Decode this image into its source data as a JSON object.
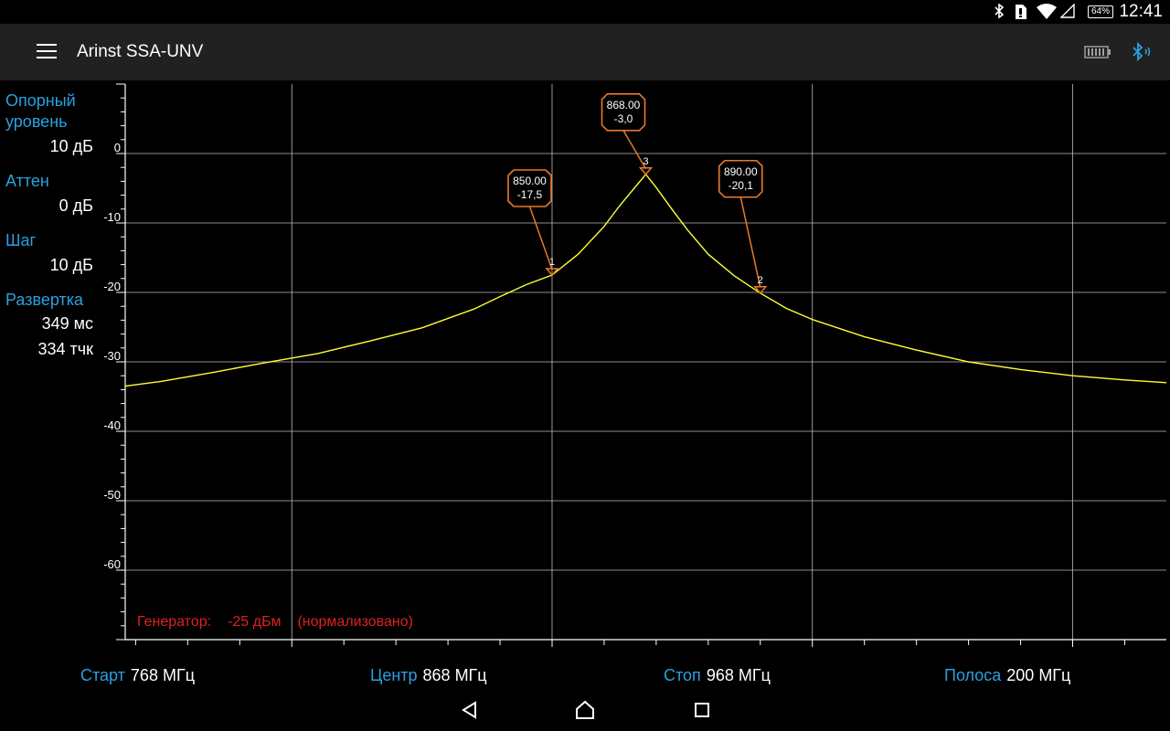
{
  "status_bar": {
    "time": "12:41",
    "battery_percent": "64%",
    "icons": [
      "bluetooth-icon",
      "sim-card-icon",
      "wifi-icon",
      "signal-icon",
      "battery-icon"
    ]
  },
  "app_bar": {
    "title": "Arinst SSA-UNV",
    "menu_icon": "hamburger-menu-icon",
    "right_icons": [
      "device-battery-icon",
      "bluetooth-connected-icon"
    ],
    "accent_color": "#2aa0e0"
  },
  "side_panel": {
    "ref_level": {
      "label_line1": "Опорный",
      "label_line2": "уровень",
      "value": "10  дБ"
    },
    "atten": {
      "label": "Аттен",
      "value": "0  дБ"
    },
    "step": {
      "label": "Шаг",
      "value": "10  дБ"
    },
    "sweep": {
      "label": "Развертка",
      "time": "349 мс",
      "points": "334 тчк"
    }
  },
  "generator": {
    "label": "Генератор:",
    "level": "-25 дБм",
    "note": "(нормализовано)",
    "color": "#e02020"
  },
  "bottom_info": {
    "start": {
      "label": "Старт",
      "value": "768 МГц"
    },
    "center": {
      "label": "Центр",
      "value": "868 МГц"
    },
    "stop": {
      "label": "Стоп",
      "value": "968 МГц"
    },
    "span": {
      "label": "Полоса",
      "value": "200 МГц"
    }
  },
  "nav_bar": [
    "back-icon",
    "home-icon",
    "recents-icon"
  ],
  "chart_data": {
    "type": "line",
    "title": "",
    "xlabel": "",
    "ylabel": "",
    "xlim": [
      768,
      968
    ],
    "ylim": [
      -70,
      10
    ],
    "x_ticks": [
      800,
      850,
      900,
      950
    ],
    "y_ticks": [
      0,
      -10,
      -20,
      -30,
      -40,
      -50,
      -60
    ],
    "grid": true,
    "trace_color": "#ffff33",
    "marker_color": "#e87a2a",
    "series": [
      {
        "x": [
          768,
          775,
          785,
          795,
          805,
          815,
          825,
          835,
          840,
          845,
          850,
          855,
          860,
          863,
          866,
          868,
          870,
          873,
          876,
          880,
          885,
          890,
          895,
          900,
          910,
          920,
          930,
          940,
          950,
          960,
          968
        ],
        "y": [
          -33.5,
          -32.8,
          -31.5,
          -30.1,
          -28.8,
          -27.0,
          -25.1,
          -22.4,
          -20.6,
          -18.9,
          -17.5,
          -14.5,
          -10.5,
          -7.5,
          -4.8,
          -3.0,
          -4.9,
          -8.0,
          -11.0,
          -14.5,
          -17.6,
          -20.1,
          -22.3,
          -23.9,
          -26.4,
          -28.3,
          -30.0,
          -31.1,
          -32.0,
          -32.6,
          -33.0
        ]
      }
    ],
    "markers": [
      {
        "id": "1",
        "freq": "850.00",
        "level": "-17,5",
        "x": 850,
        "y": -17.5
      },
      {
        "id": "2",
        "freq": "890.00",
        "level": "-20,1",
        "x": 890,
        "y": -20.1
      },
      {
        "id": "3",
        "freq": "868.00",
        "level": "-3,0",
        "x": 868,
        "y": -3.0
      }
    ]
  }
}
